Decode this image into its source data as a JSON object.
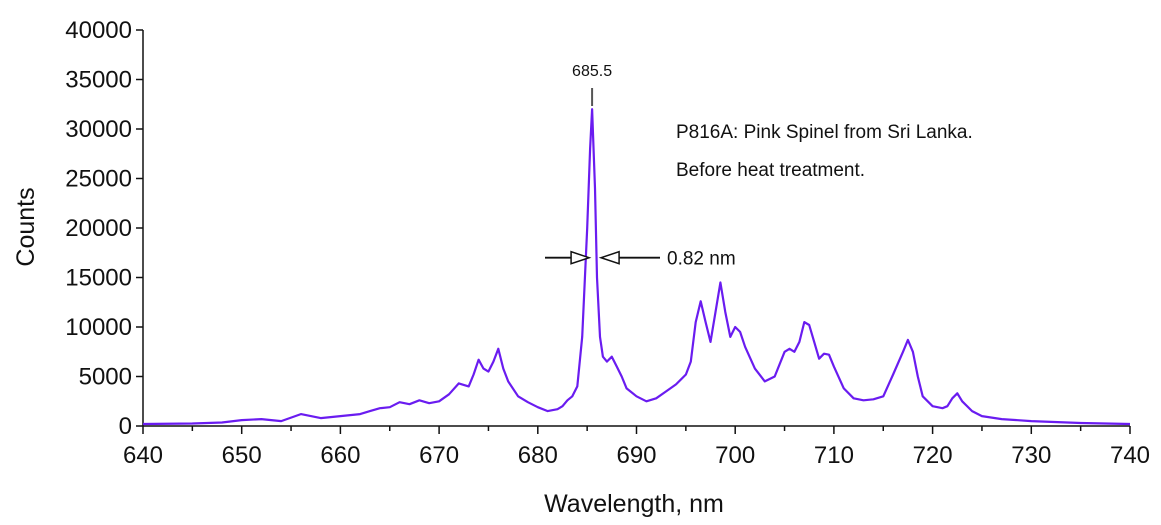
{
  "chart_data": {
    "type": "line",
    "xlabel": "Wavelength, nm",
    "ylabel": "Counts",
    "xlim": [
      640,
      740
    ],
    "ylim": [
      0,
      40000
    ],
    "x_ticks": [
      "640",
      "650",
      "660",
      "670",
      "680",
      "690",
      "700",
      "710",
      "720",
      "730",
      "740"
    ],
    "y_ticks": [
      "0",
      "5000",
      "10000",
      "15000",
      "20000",
      "25000",
      "30000",
      "35000",
      "40000"
    ],
    "grid": false,
    "line_color": "#6a1cf0",
    "series": [
      {
        "x": [
          640,
          645,
          648,
          650,
          652,
          654,
          656,
          657,
          658,
          660,
          662,
          663,
          664,
          665,
          666,
          667,
          668,
          669,
          670,
          671,
          672,
          673,
          673.5,
          674,
          674.5,
          675,
          675.5,
          676,
          676.5,
          677,
          678,
          679,
          680,
          681,
          682,
          682.5,
          683,
          683.5,
          684,
          684.5,
          685,
          685.3,
          685.5,
          685.8,
          686,
          686.3,
          686.6,
          687,
          687.5,
          688,
          688.5,
          689,
          690,
          691,
          692,
          693,
          694,
          695,
          695.5,
          696,
          696.5,
          697,
          697.5,
          698,
          698.5,
          699,
          699.5,
          700,
          700.5,
          701,
          702,
          703,
          704,
          705,
          705.5,
          706,
          706.5,
          707,
          707.5,
          708,
          708.5,
          709,
          709.5,
          710,
          711,
          712,
          713,
          714,
          715,
          716,
          717,
          717.5,
          718,
          718.5,
          719,
          720,
          721,
          721.5,
          722,
          722.5,
          723,
          724,
          725,
          727,
          730,
          735,
          740
        ],
        "y": [
          200,
          250,
          350,
          600,
          700,
          500,
          1200,
          1000,
          800,
          1000,
          1200,
          1500,
          1800,
          1900,
          2400,
          2200,
          2600,
          2300,
          2500,
          3200,
          4300,
          4000,
          5200,
          6700,
          5800,
          5500,
          6500,
          7800,
          5800,
          4500,
          3000,
          2400,
          1900,
          1500,
          1700,
          2000,
          2600,
          3000,
          4000,
          9000,
          20000,
          28000,
          32000,
          24000,
          15000,
          9000,
          7000,
          6500,
          7000,
          6000,
          5000,
          3800,
          3000,
          2500,
          2800,
          3500,
          4200,
          5200,
          6500,
          10500,
          12600,
          10500,
          8500,
          11500,
          14500,
          11500,
          9000,
          10000,
          9500,
          8000,
          5800,
          4500,
          5000,
          7500,
          7800,
          7500,
          8500,
          10500,
          10200,
          8500,
          6800,
          7300,
          7200,
          6000,
          3800,
          2800,
          2600,
          2700,
          3000,
          5200,
          7500,
          8700,
          7500,
          5000,
          3000,
          2000,
          1800,
          2000,
          2800,
          3300,
          2500,
          1500,
          1000,
          700,
          500,
          300,
          200
        ]
      }
    ],
    "annotations": [
      {
        "label": "685.5",
        "x": 685.5
      },
      {
        "label": "P816A: Pink Spinel from Sri Lanka.",
        "line": 1
      },
      {
        "label": "Before heat treatment.",
        "line": 2
      },
      {
        "label": "0.82 nm",
        "x": 686,
        "y": 17000
      }
    ]
  }
}
